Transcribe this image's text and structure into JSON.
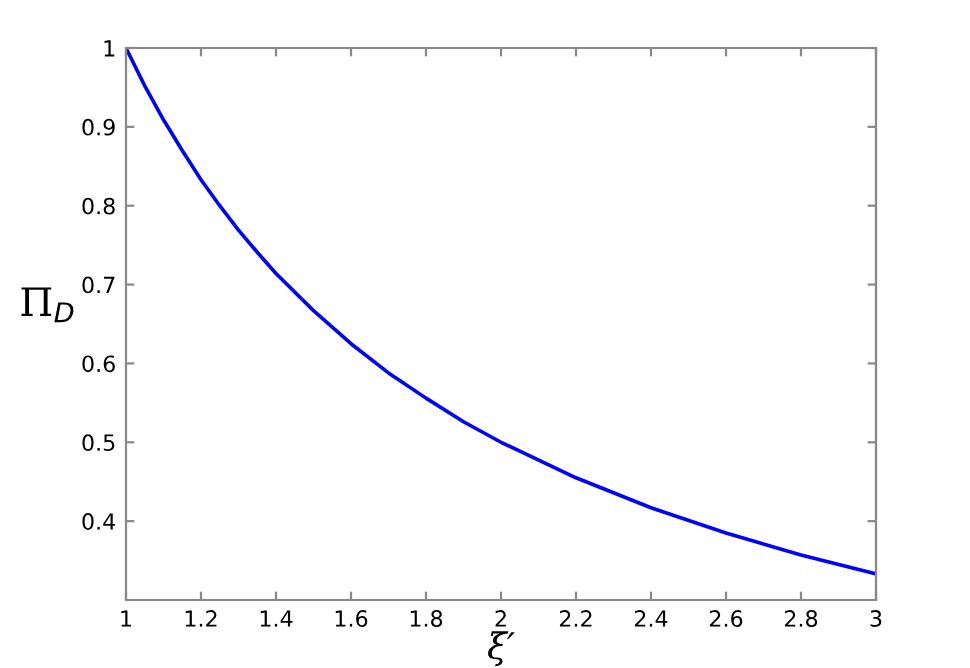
{
  "chart_data": {
    "type": "line",
    "xlabel": "ξ′",
    "ylabel": "Π$_{D}$",
    "x": [
      1,
      1.05,
      1.1,
      1.15,
      1.2,
      1.25,
      1.3,
      1.35,
      1.4,
      1.5,
      1.6,
      1.7,
      1.8,
      1.9,
      2,
      2.2,
      2.4,
      2.6,
      2.8,
      3
    ],
    "series": [
      {
        "color": "#0000ff",
        "values": [
          1,
          0.952,
          0.909,
          0.87,
          0.833,
          0.8,
          0.769,
          0.741,
          0.714,
          0.667,
          0.625,
          0.588,
          0.556,
          0.526,
          0.5,
          0.455,
          0.417,
          0.385,
          0.357,
          0.333
        ]
      }
    ],
    "xlim": [
      1,
      3
    ],
    "ylim": [
      0.3,
      1
    ],
    "xticks": [
      1,
      1.2,
      1.4,
      1.6,
      1.8,
      2,
      2.2,
      2.4,
      2.6,
      2.8,
      3
    ],
    "yticks": [
      0.4,
      0.5,
      0.6,
      0.7,
      0.8,
      0.9,
      1
    ],
    "grid": false,
    "legend": false,
    "marker": "none",
    "line_style": "solid"
  }
}
